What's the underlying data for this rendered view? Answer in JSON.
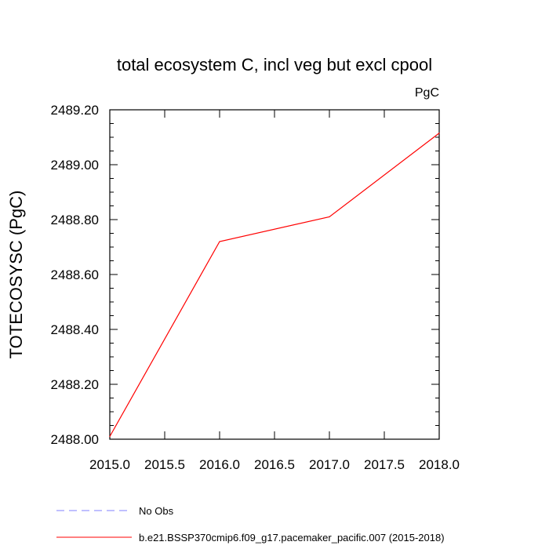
{
  "chart_data": {
    "type": "line",
    "title": "total ecosystem C, incl veg but excl cpool",
    "units_label": "PgC",
    "ylabel": "TOTECOSYSC  (PgC)",
    "xlabel": "",
    "xlim": [
      2015.0,
      2018.0
    ],
    "ylim": [
      2488.0,
      2489.2
    ],
    "x_ticks": [
      2015.0,
      2015.5,
      2016.0,
      2016.5,
      2017.0,
      2017.5,
      2018.0
    ],
    "x_tick_labels": [
      "2015.0",
      "2015.5",
      "2016.0",
      "2016.5",
      "2017.0",
      "2017.5",
      "2018.0"
    ],
    "y_ticks": [
      2488.0,
      2488.2,
      2488.4,
      2488.6,
      2488.8,
      2489.0,
      2489.2
    ],
    "y_tick_labels": [
      "2488.00",
      "2488.20",
      "2488.40",
      "2488.60",
      "2488.80",
      "2489.00",
      "2489.20"
    ],
    "grid": false,
    "legend_position": "bottom",
    "series": [
      {
        "name": "b.e21.BSSP370cmip6.f09_g17.pacemaker_pacific.007 (2015-2018)",
        "color": "#ff0000",
        "style": "solid",
        "x": [
          2015.0,
          2016.0,
          2017.0,
          2018.0
        ],
        "y": [
          2488.01,
          2488.72,
          2488.81,
          2489.115
        ]
      }
    ],
    "legend": [
      {
        "label": "No Obs",
        "color": "#8080ff",
        "style": "dashed"
      },
      {
        "label": "b.e21.BSSP370cmip6.f09_g17.pacemaker_pacific.007 (2015-2018)",
        "color": "#ff0000",
        "style": "solid"
      }
    ]
  }
}
